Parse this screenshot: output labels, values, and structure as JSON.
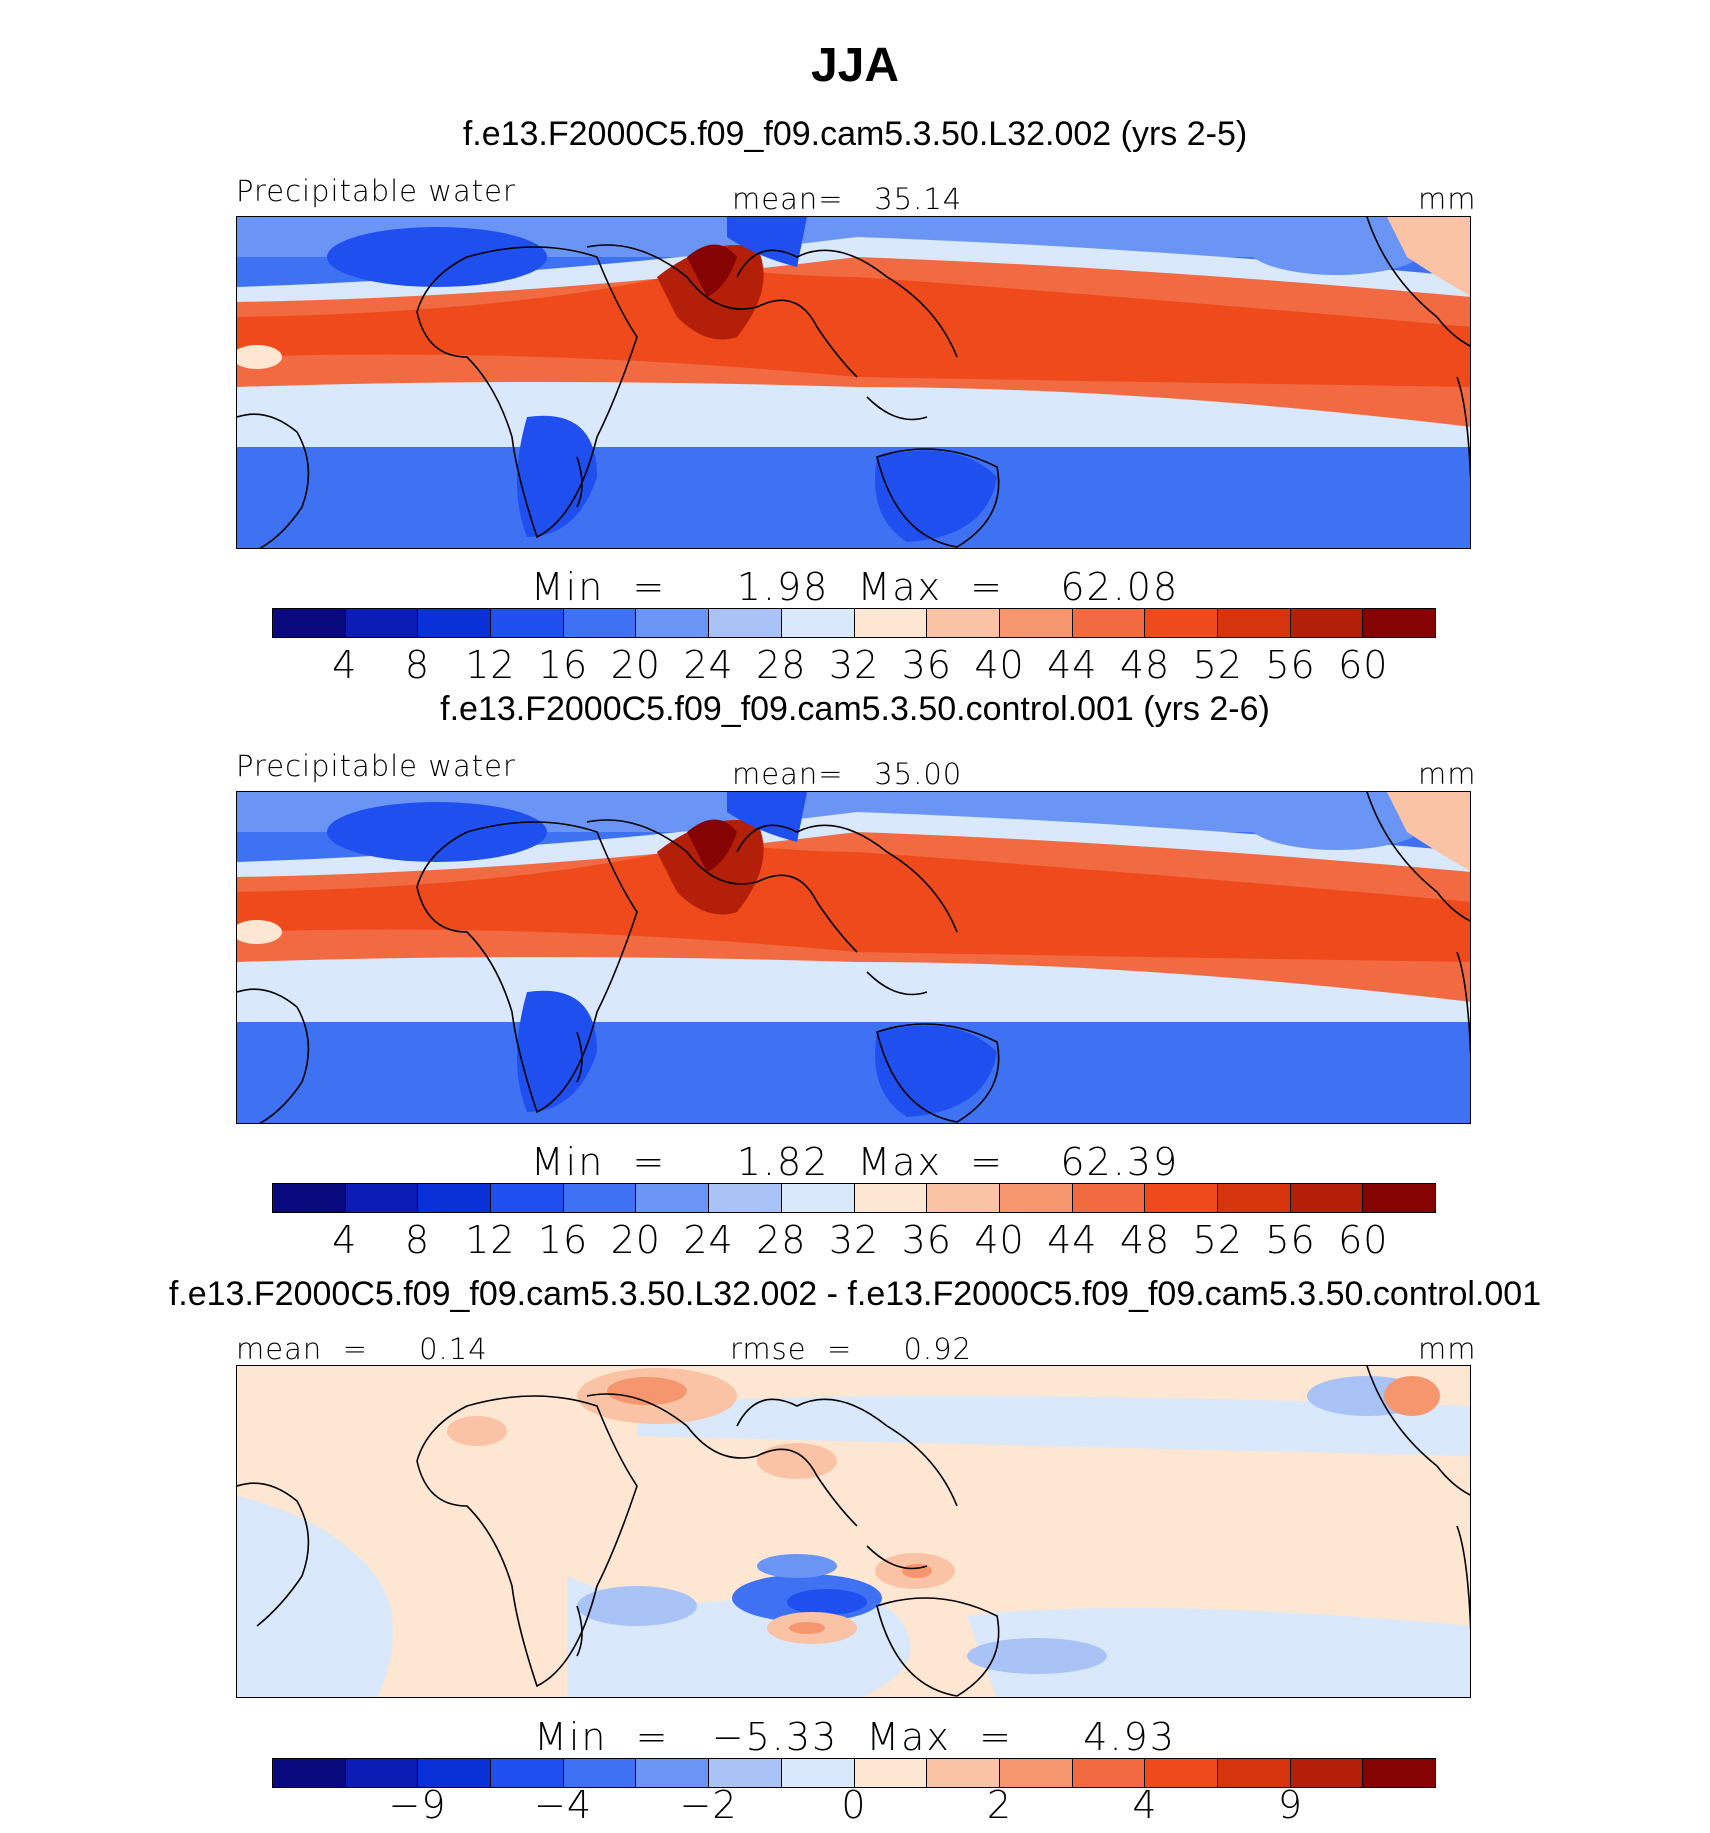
{
  "figure_title": "JJA",
  "panels": [
    {
      "case_title": "f.e13.F2000C5.f09_f09.cam5.3.50.L32.002 (yrs 2-5)",
      "variable": "Precipitable water",
      "stat_center": "mean=   35.14",
      "units": "mm",
      "minmax": "Min  =     1.98  Max  =    62.08",
      "kind": "field"
    },
    {
      "case_title": "f.e13.F2000C5.f09_f09.cam5.3.50.control.001 (yrs 2-6)",
      "variable": "Precipitable water",
      "stat_center": "mean=   35.00",
      "units": "mm",
      "minmax": "Min  =     1.82  Max  =    62.39",
      "kind": "field"
    },
    {
      "case_title": "f.e13.F2000C5.f09_f09.cam5.3.50.L32.002 - f.e13.F2000C5.f09_f09.cam5.3.50.control.001",
      "stat_left": "mean  =     0.14",
      "stat_center": "rmse  =     0.92",
      "units": "mm",
      "minmax": "Min  =   −5.33  Max  =     4.93",
      "kind": "diff"
    }
  ],
  "colorbar_colors": [
    "#0a0a7e",
    "#0b1db5",
    "#0a31d8",
    "#1f4fef",
    "#3e72f2",
    "#6a95f4",
    "#a9c3f7",
    "#d9e8fb",
    "#fde6d2",
    "#fac3a6",
    "#f6966e",
    "#f26a42",
    "#ee4a1c",
    "#d6340d",
    "#b31f08",
    "#850303"
  ],
  "colorbar_field_ticks": [
    "4",
    "8",
    "12",
    "16",
    "20",
    "24",
    "28",
    "32",
    "36",
    "40",
    "44",
    "48",
    "52",
    "56",
    "60"
  ],
  "colorbar_diff_ticks": [
    "−9",
    "−4",
    "−2",
    "0",
    "2",
    "4",
    "9"
  ]
}
